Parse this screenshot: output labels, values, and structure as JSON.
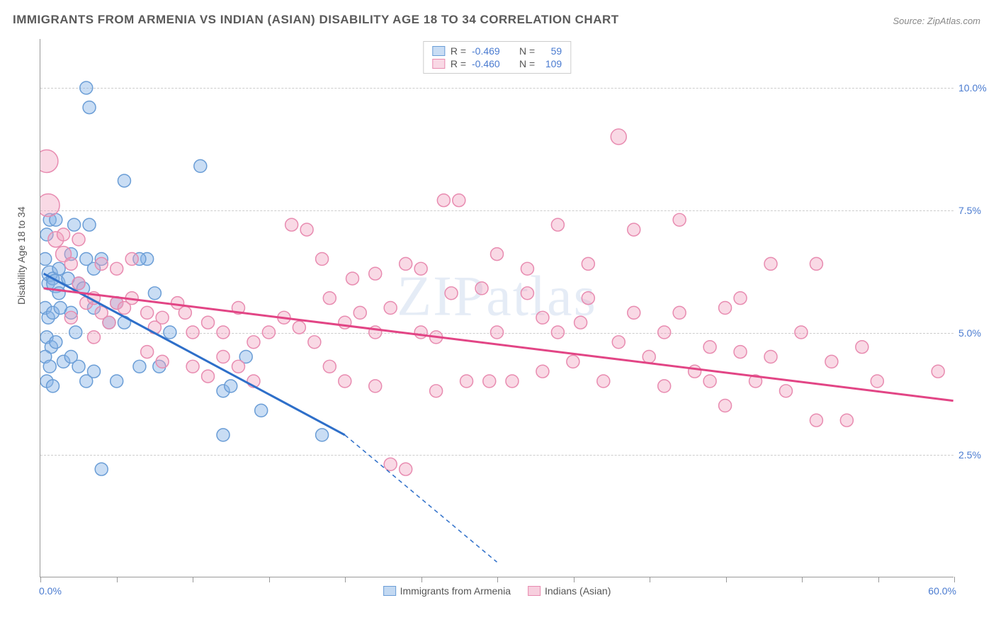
{
  "title": "IMMIGRANTS FROM ARMENIA VS INDIAN (ASIAN) DISABILITY AGE 18 TO 34 CORRELATION CHART",
  "source": "Source: ZipAtlas.com",
  "ylabel": "Disability Age 18 to 34",
  "watermark": "ZIPatlas",
  "chart": {
    "type": "scatter",
    "xlim": [
      0,
      60
    ],
    "ylim": [
      0,
      11
    ],
    "xtick_labels": {
      "min": "0.0%",
      "max": "60.0%"
    },
    "ytick_positions": [
      2.5,
      5.0,
      7.5,
      10.0
    ],
    "ytick_labels": [
      "2.5%",
      "5.0%",
      "7.5%",
      "10.0%"
    ],
    "xtick_positions": [
      0,
      5,
      10,
      15,
      20,
      25,
      30,
      35,
      40,
      45,
      50,
      55,
      60
    ],
    "background_color": "#ffffff",
    "grid_color": "#cccccc",
    "axis_color": "#999999",
    "series": [
      {
        "name": "Immigrants from Armenia",
        "fill": "rgba(135, 180, 230, 0.45)",
        "stroke": "#6a9dd6",
        "line_color": "#2e6fc9",
        "R": "-0.469",
        "N": "59",
        "regression": {
          "x1": 0.2,
          "y1": 6.2,
          "x2": 20,
          "y2": 2.9,
          "x2_dash": 30,
          "y2_dash": 0.3
        },
        "points": [
          {
            "x": 0.5,
            "y": 6.0,
            "r": 9
          },
          {
            "x": 0.6,
            "y": 6.2,
            "r": 11
          },
          {
            "x": 0.8,
            "y": 6.1,
            "r": 9
          },
          {
            "x": 1.0,
            "y": 6.0,
            "r": 13
          },
          {
            "x": 1.2,
            "y": 5.8,
            "r": 9
          },
          {
            "x": 0.3,
            "y": 6.5,
            "r": 9
          },
          {
            "x": 0.4,
            "y": 7.0,
            "r": 9
          },
          {
            "x": 0.6,
            "y": 7.3,
            "r": 9
          },
          {
            "x": 1.0,
            "y": 7.3,
            "r": 9
          },
          {
            "x": 0.3,
            "y": 5.5,
            "r": 9
          },
          {
            "x": 0.5,
            "y": 5.3,
            "r": 9
          },
          {
            "x": 0.8,
            "y": 5.4,
            "r": 9
          },
          {
            "x": 1.3,
            "y": 5.5,
            "r": 9
          },
          {
            "x": 0.4,
            "y": 4.9,
            "r": 9
          },
          {
            "x": 0.7,
            "y": 4.7,
            "r": 9
          },
          {
            "x": 1.0,
            "y": 4.8,
            "r": 9
          },
          {
            "x": 0.3,
            "y": 4.5,
            "r": 9
          },
          {
            "x": 0.6,
            "y": 4.3,
            "r": 9
          },
          {
            "x": 1.5,
            "y": 4.4,
            "r": 9
          },
          {
            "x": 0.4,
            "y": 4.0,
            "r": 9
          },
          {
            "x": 0.8,
            "y": 3.9,
            "r": 9
          },
          {
            "x": 2.0,
            "y": 6.6,
            "r": 9
          },
          {
            "x": 2.5,
            "y": 6.0,
            "r": 9
          },
          {
            "x": 2.8,
            "y": 5.9,
            "r": 9
          },
          {
            "x": 2.2,
            "y": 7.2,
            "r": 9
          },
          {
            "x": 3.0,
            "y": 6.5,
            "r": 9
          },
          {
            "x": 3.2,
            "y": 7.2,
            "r": 9
          },
          {
            "x": 3.5,
            "y": 6.3,
            "r": 9
          },
          {
            "x": 4.0,
            "y": 6.5,
            "r": 9
          },
          {
            "x": 3.0,
            "y": 10.0,
            "r": 9
          },
          {
            "x": 3.2,
            "y": 9.6,
            "r": 9
          },
          {
            "x": 5.5,
            "y": 8.1,
            "r": 9
          },
          {
            "x": 10.5,
            "y": 8.4,
            "r": 9
          },
          {
            "x": 2.0,
            "y": 5.4,
            "r": 9
          },
          {
            "x": 2.3,
            "y": 5.0,
            "r": 9
          },
          {
            "x": 3.5,
            "y": 5.5,
            "r": 9
          },
          {
            "x": 4.5,
            "y": 5.2,
            "r": 9
          },
          {
            "x": 5.0,
            "y": 5.6,
            "r": 9
          },
          {
            "x": 5.5,
            "y": 5.2,
            "r": 9
          },
          {
            "x": 7.0,
            "y": 6.5,
            "r": 9
          },
          {
            "x": 7.5,
            "y": 5.8,
            "r": 9
          },
          {
            "x": 8.5,
            "y": 5.0,
            "r": 9
          },
          {
            "x": 2.0,
            "y": 4.5,
            "r": 9
          },
          {
            "x": 2.5,
            "y": 4.3,
            "r": 9
          },
          {
            "x": 3.0,
            "y": 4.0,
            "r": 9
          },
          {
            "x": 3.5,
            "y": 4.2,
            "r": 9
          },
          {
            "x": 5.0,
            "y": 4.0,
            "r": 9
          },
          {
            "x": 6.5,
            "y": 4.3,
            "r": 9
          },
          {
            "x": 7.8,
            "y": 4.3,
            "r": 9
          },
          {
            "x": 4.0,
            "y": 2.2,
            "r": 9
          },
          {
            "x": 12.0,
            "y": 3.8,
            "r": 9
          },
          {
            "x": 12.5,
            "y": 3.9,
            "r": 9
          },
          {
            "x": 13.5,
            "y": 4.5,
            "r": 9
          },
          {
            "x": 12.0,
            "y": 2.9,
            "r": 9
          },
          {
            "x": 14.5,
            "y": 3.4,
            "r": 9
          },
          {
            "x": 18.5,
            "y": 2.9,
            "r": 9
          },
          {
            "x": 6.5,
            "y": 6.5,
            "r": 9
          },
          {
            "x": 1.2,
            "y": 6.3,
            "r": 9
          },
          {
            "x": 1.8,
            "y": 6.1,
            "r": 9
          }
        ]
      },
      {
        "name": "Indians (Asian)",
        "fill": "rgba(240, 160, 190, 0.4)",
        "stroke": "#e88bb0",
        "line_color": "#e24585",
        "R": "-0.460",
        "N": "109",
        "regression": {
          "x1": 0.2,
          "y1": 5.9,
          "x2": 60,
          "y2": 3.6
        },
        "points": [
          {
            "x": 0.4,
            "y": 8.5,
            "r": 16
          },
          {
            "x": 0.5,
            "y": 7.6,
            "r": 16
          },
          {
            "x": 1.0,
            "y": 6.9,
            "r": 11
          },
          {
            "x": 1.5,
            "y": 6.6,
            "r": 11
          },
          {
            "x": 2.0,
            "y": 6.4,
            "r": 9
          },
          {
            "x": 2.5,
            "y": 6.0,
            "r": 9
          },
          {
            "x": 3.0,
            "y": 5.6,
            "r": 9
          },
          {
            "x": 3.5,
            "y": 5.7,
            "r": 9
          },
          {
            "x": 4.0,
            "y": 5.4,
            "r": 9
          },
          {
            "x": 4.5,
            "y": 5.2,
            "r": 9
          },
          {
            "x": 5.0,
            "y": 5.6,
            "r": 9
          },
          {
            "x": 5.5,
            "y": 5.5,
            "r": 9
          },
          {
            "x": 6.0,
            "y": 5.7,
            "r": 9
          },
          {
            "x": 7.0,
            "y": 5.4,
            "r": 9
          },
          {
            "x": 7.5,
            "y": 5.1,
            "r": 9
          },
          {
            "x": 8.0,
            "y": 5.3,
            "r": 9
          },
          {
            "x": 9.0,
            "y": 5.6,
            "r": 9
          },
          {
            "x": 9.5,
            "y": 5.4,
            "r": 9
          },
          {
            "x": 10.0,
            "y": 5.0,
            "r": 9
          },
          {
            "x": 11.0,
            "y": 5.2,
            "r": 9
          },
          {
            "x": 12.0,
            "y": 5.0,
            "r": 9
          },
          {
            "x": 13.0,
            "y": 5.5,
            "r": 9
          },
          {
            "x": 14.0,
            "y": 4.8,
            "r": 9
          },
          {
            "x": 15.0,
            "y": 5.0,
            "r": 9
          },
          {
            "x": 16.0,
            "y": 5.3,
            "r": 9
          },
          {
            "x": 17.0,
            "y": 5.1,
            "r": 9
          },
          {
            "x": 18.0,
            "y": 4.8,
            "r": 9
          },
          {
            "x": 19.0,
            "y": 5.7,
            "r": 9
          },
          {
            "x": 20.0,
            "y": 5.2,
            "r": 9
          },
          {
            "x": 21.0,
            "y": 5.4,
            "r": 9
          },
          {
            "x": 22.0,
            "y": 5.0,
            "r": 9
          },
          {
            "x": 23.0,
            "y": 5.5,
            "r": 9
          },
          {
            "x": 24.0,
            "y": 6.4,
            "r": 9
          },
          {
            "x": 25.0,
            "y": 5.0,
            "r": 9
          },
          {
            "x": 26.0,
            "y": 4.9,
            "r": 9
          },
          {
            "x": 26.5,
            "y": 7.7,
            "r": 9
          },
          {
            "x": 27.0,
            "y": 5.8,
            "r": 9
          },
          {
            "x": 27.5,
            "y": 7.7,
            "r": 9
          },
          {
            "x": 28.0,
            "y": 4.0,
            "r": 9
          },
          {
            "x": 29.0,
            "y": 5.9,
            "r": 9
          },
          {
            "x": 29.5,
            "y": 4.0,
            "r": 9
          },
          {
            "x": 30.0,
            "y": 5.0,
            "r": 9
          },
          {
            "x": 30.0,
            "y": 6.6,
            "r": 9
          },
          {
            "x": 31.0,
            "y": 4.0,
            "r": 9
          },
          {
            "x": 32.0,
            "y": 5.8,
            "r": 9
          },
          {
            "x": 32.0,
            "y": 6.3,
            "r": 9
          },
          {
            "x": 33.0,
            "y": 4.2,
            "r": 9
          },
          {
            "x": 34.0,
            "y": 5.0,
            "r": 9
          },
          {
            "x": 34.0,
            "y": 7.2,
            "r": 9
          },
          {
            "x": 35.0,
            "y": 4.4,
            "r": 9
          },
          {
            "x": 36.0,
            "y": 5.7,
            "r": 9
          },
          {
            "x": 36.0,
            "y": 6.4,
            "r": 9
          },
          {
            "x": 37.0,
            "y": 4.0,
            "r": 9
          },
          {
            "x": 38.0,
            "y": 9.0,
            "r": 11
          },
          {
            "x": 38.0,
            "y": 4.8,
            "r": 9
          },
          {
            "x": 39.0,
            "y": 5.4,
            "r": 9
          },
          {
            "x": 39.0,
            "y": 7.1,
            "r": 9
          },
          {
            "x": 40.0,
            "y": 4.5,
            "r": 9
          },
          {
            "x": 41.0,
            "y": 3.9,
            "r": 9
          },
          {
            "x": 41.0,
            "y": 5.0,
            "r": 9
          },
          {
            "x": 42.0,
            "y": 7.3,
            "r": 9
          },
          {
            "x": 42.0,
            "y": 5.4,
            "r": 9
          },
          {
            "x": 43.0,
            "y": 4.2,
            "r": 9
          },
          {
            "x": 44.0,
            "y": 4.0,
            "r": 9
          },
          {
            "x": 44.0,
            "y": 4.7,
            "r": 9
          },
          {
            "x": 45.0,
            "y": 3.5,
            "r": 9
          },
          {
            "x": 46.0,
            "y": 4.6,
            "r": 9
          },
          {
            "x": 46.0,
            "y": 5.7,
            "r": 9
          },
          {
            "x": 47.0,
            "y": 4.0,
            "r": 9
          },
          {
            "x": 48.0,
            "y": 6.4,
            "r": 9
          },
          {
            "x": 48.0,
            "y": 4.5,
            "r": 9
          },
          {
            "x": 49.0,
            "y": 3.8,
            "r": 9
          },
          {
            "x": 50.0,
            "y": 5.0,
            "r": 9
          },
          {
            "x": 51.0,
            "y": 6.4,
            "r": 9
          },
          {
            "x": 51.0,
            "y": 3.2,
            "r": 9
          },
          {
            "x": 52.0,
            "y": 4.4,
            "r": 9
          },
          {
            "x": 53.0,
            "y": 3.2,
            "r": 9
          },
          {
            "x": 54.0,
            "y": 4.7,
            "r": 9
          },
          {
            "x": 55.0,
            "y": 4.0,
            "r": 9
          },
          {
            "x": 59.0,
            "y": 4.2,
            "r": 9
          },
          {
            "x": 16.5,
            "y": 7.2,
            "r": 9
          },
          {
            "x": 17.5,
            "y": 7.1,
            "r": 9
          },
          {
            "x": 18.5,
            "y": 6.5,
            "r": 9
          },
          {
            "x": 20.5,
            "y": 6.1,
            "r": 9
          },
          {
            "x": 19.0,
            "y": 4.3,
            "r": 9
          },
          {
            "x": 20.0,
            "y": 4.0,
            "r": 9
          },
          {
            "x": 22.0,
            "y": 3.9,
            "r": 9
          },
          {
            "x": 23.0,
            "y": 2.3,
            "r": 9
          },
          {
            "x": 24.0,
            "y": 2.2,
            "r": 9
          },
          {
            "x": 26.0,
            "y": 3.8,
            "r": 9
          },
          {
            "x": 10.0,
            "y": 4.3,
            "r": 9
          },
          {
            "x": 11.0,
            "y": 4.1,
            "r": 9
          },
          {
            "x": 12.0,
            "y": 4.5,
            "r": 9
          },
          {
            "x": 13.0,
            "y": 4.3,
            "r": 9
          },
          {
            "x": 14.0,
            "y": 4.0,
            "r": 9
          },
          {
            "x": 7.0,
            "y": 4.6,
            "r": 9
          },
          {
            "x": 8.0,
            "y": 4.4,
            "r": 9
          },
          {
            "x": 2.0,
            "y": 5.3,
            "r": 9
          },
          {
            "x": 3.5,
            "y": 4.9,
            "r": 9
          },
          {
            "x": 1.5,
            "y": 7.0,
            "r": 9
          },
          {
            "x": 2.5,
            "y": 6.9,
            "r": 9
          },
          {
            "x": 4.0,
            "y": 6.4,
            "r": 9
          },
          {
            "x": 5.0,
            "y": 6.3,
            "r": 9
          },
          {
            "x": 6.0,
            "y": 6.5,
            "r": 9
          },
          {
            "x": 22.0,
            "y": 6.2,
            "r": 9
          },
          {
            "x": 25.0,
            "y": 6.3,
            "r": 9
          },
          {
            "x": 45.0,
            "y": 5.5,
            "r": 9
          },
          {
            "x": 33.0,
            "y": 5.3,
            "r": 9
          },
          {
            "x": 35.5,
            "y": 5.2,
            "r": 9
          }
        ]
      }
    ]
  },
  "legend_bottom": [
    {
      "label": "Immigrants from Armenia",
      "fill": "rgba(135,180,230,0.5)",
      "stroke": "#6a9dd6"
    },
    {
      "label": "Indians (Asian)",
      "fill": "rgba(240,160,190,0.5)",
      "stroke": "#e88bb0"
    }
  ]
}
